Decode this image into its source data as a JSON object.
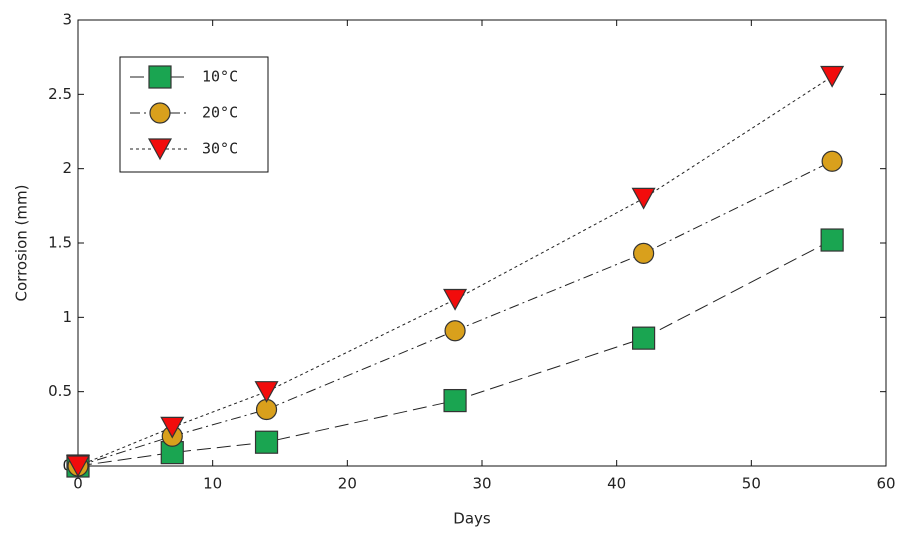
{
  "chart_data": {
    "type": "line",
    "x_label": "Days",
    "y_label": "Corrosion (mm)",
    "x": [
      0,
      7,
      14,
      28,
      42,
      56
    ],
    "series": [
      {
        "name": "10°C",
        "color": "#1aa551",
        "marker": "square",
        "dash": "14 6",
        "values": [
          0,
          0.09,
          0.16,
          0.44,
          0.86,
          1.52
        ]
      },
      {
        "name": "20°C",
        "color": "#d9a01c",
        "marker": "circle",
        "dash": "10 4 2 4",
        "values": [
          0,
          0.2,
          0.38,
          0.91,
          1.43,
          2.05
        ]
      },
      {
        "name": "30°C",
        "color": "#f20c0c",
        "marker": "triangle-down",
        "dash": "3 3",
        "values": [
          0,
          0.26,
          0.5,
          1.12,
          1.8,
          2.62
        ]
      }
    ],
    "xlim": [
      0,
      60
    ],
    "xticks": [
      0,
      10,
      20,
      30,
      40,
      50,
      60
    ],
    "ylim": [
      0,
      3
    ],
    "yticks": [
      0,
      0.5,
      1,
      1.5,
      2,
      2.5,
      3
    ],
    "legend": "upper left"
  }
}
